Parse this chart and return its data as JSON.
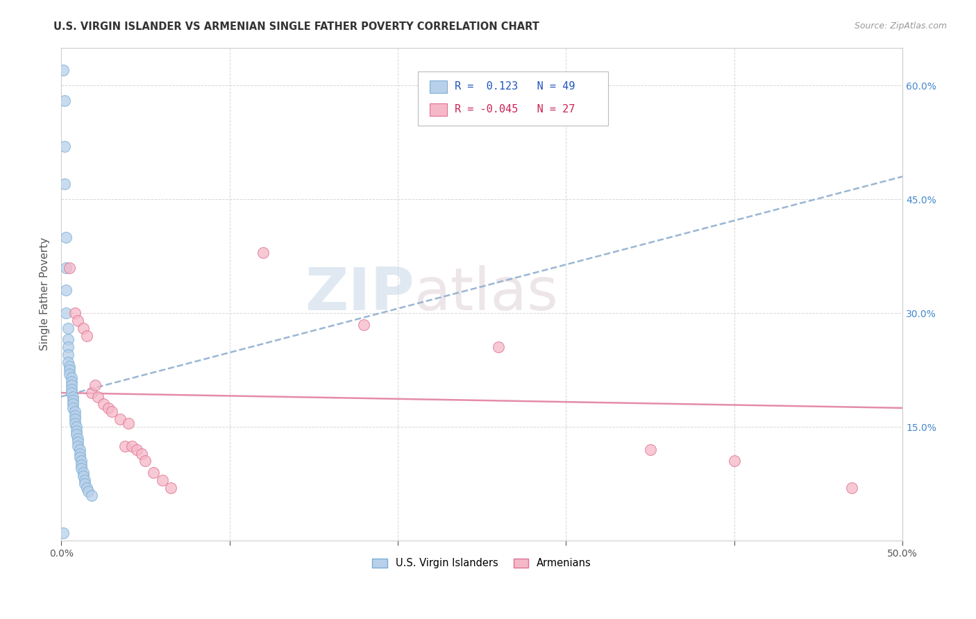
{
  "title": "U.S. VIRGIN ISLANDER VS ARMENIAN SINGLE FATHER POVERTY CORRELATION CHART",
  "source": "Source: ZipAtlas.com",
  "ylabel": "Single Father Poverty",
  "legend_label_blue": "U.S. Virgin Islanders",
  "legend_label_pink": "Armenians",
  "R_blue": 0.123,
  "N_blue": 49,
  "R_pink": -0.045,
  "N_pink": 27,
  "xlim": [
    0.0,
    0.5
  ],
  "ylim": [
    0.0,
    0.65
  ],
  "xticks": [
    0.0,
    0.1,
    0.2,
    0.3,
    0.4,
    0.5
  ],
  "xtick_labels": [
    "0.0%",
    "",
    "",
    "",
    "",
    "50.0%"
  ],
  "yticks": [
    0.0,
    0.15,
    0.3,
    0.45,
    0.6
  ],
  "ytick_labels_right": [
    "",
    "15.0%",
    "30.0%",
    "45.0%",
    "60.0%"
  ],
  "color_blue_fill": "#b8d0ea",
  "color_blue_edge": "#7aadd4",
  "color_pink_fill": "#f5b8c8",
  "color_pink_edge": "#e07090",
  "color_blue_line": "#88aacc",
  "color_pink_line": "#e07898",
  "background": "#ffffff",
  "watermark_zip": "ZIP",
  "watermark_atlas": "atlas",
  "blue_x": [
    0.001,
    0.002,
    0.002,
    0.002,
    0.003,
    0.003,
    0.003,
    0.003,
    0.004,
    0.004,
    0.004,
    0.004,
    0.004,
    0.005,
    0.005,
    0.005,
    0.006,
    0.006,
    0.006,
    0.006,
    0.006,
    0.007,
    0.007,
    0.007,
    0.007,
    0.008,
    0.008,
    0.008,
    0.008,
    0.009,
    0.009,
    0.009,
    0.01,
    0.01,
    0.01,
    0.011,
    0.011,
    0.011,
    0.012,
    0.012,
    0.012,
    0.013,
    0.013,
    0.014,
    0.014,
    0.015,
    0.016,
    0.018,
    0.001
  ],
  "blue_y": [
    0.62,
    0.58,
    0.52,
    0.47,
    0.4,
    0.36,
    0.33,
    0.3,
    0.28,
    0.265,
    0.255,
    0.245,
    0.235,
    0.23,
    0.225,
    0.22,
    0.215,
    0.21,
    0.205,
    0.2,
    0.195,
    0.19,
    0.185,
    0.18,
    0.175,
    0.17,
    0.165,
    0.16,
    0.155,
    0.15,
    0.145,
    0.14,
    0.135,
    0.13,
    0.125,
    0.12,
    0.115,
    0.11,
    0.105,
    0.1,
    0.095,
    0.09,
    0.085,
    0.08,
    0.075,
    0.07,
    0.065,
    0.06,
    0.01
  ],
  "pink_x": [
    0.005,
    0.008,
    0.01,
    0.013,
    0.015,
    0.018,
    0.02,
    0.022,
    0.025,
    0.028,
    0.03,
    0.035,
    0.038,
    0.04,
    0.042,
    0.045,
    0.048,
    0.05,
    0.055,
    0.06,
    0.065,
    0.12,
    0.18,
    0.26,
    0.35,
    0.4,
    0.47
  ],
  "pink_y": [
    0.36,
    0.3,
    0.29,
    0.28,
    0.27,
    0.195,
    0.205,
    0.19,
    0.18,
    0.175,
    0.17,
    0.16,
    0.125,
    0.155,
    0.125,
    0.12,
    0.115,
    0.105,
    0.09,
    0.08,
    0.07,
    0.38,
    0.285,
    0.255,
    0.12,
    0.105,
    0.07
  ],
  "blue_line_x": [
    0.0,
    0.5
  ],
  "blue_line_y": [
    0.19,
    0.48
  ],
  "pink_line_x": [
    0.0,
    0.5
  ],
  "pink_line_y": [
    0.195,
    0.175
  ]
}
